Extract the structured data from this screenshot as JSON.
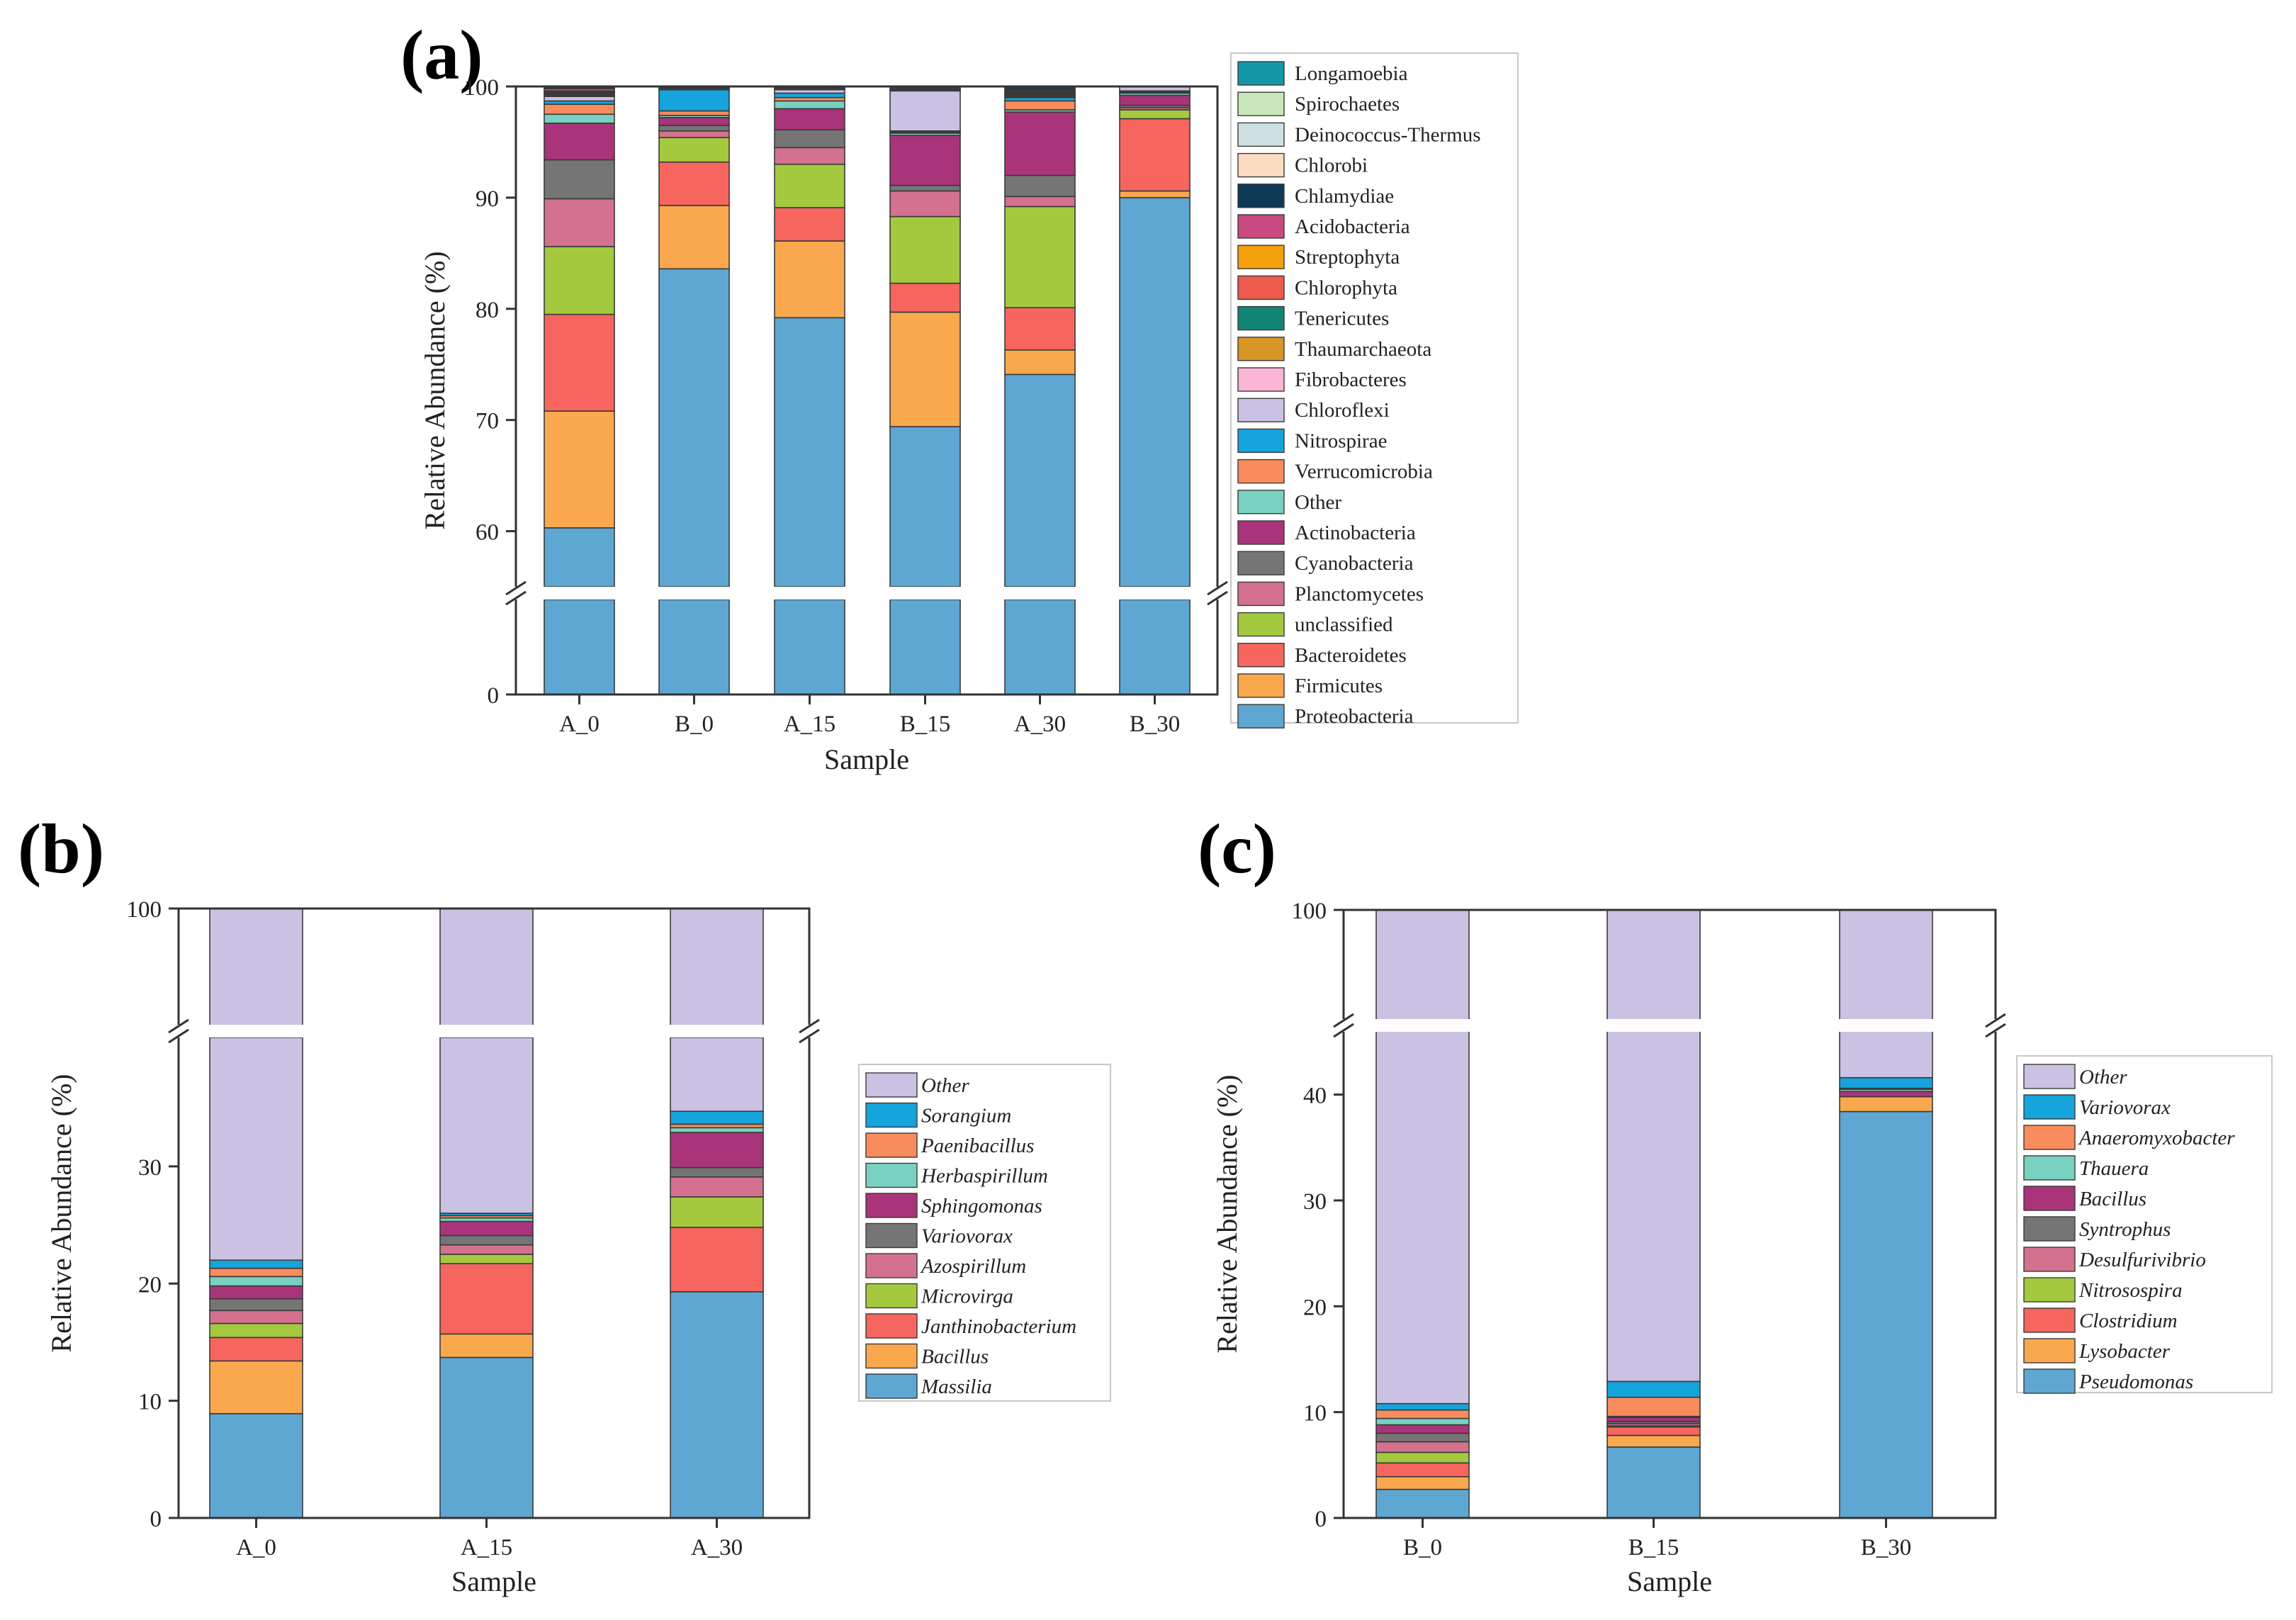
{
  "panels": {
    "a": {
      "label": "(a)"
    },
    "b": {
      "label": "(b)"
    },
    "c": {
      "label": "(c)"
    }
  },
  "chart_data": [
    {
      "id": "a",
      "type": "bar",
      "stacked": true,
      "broken_axis": true,
      "title": "",
      "xlabel": "Sample",
      "ylabel": "Relative Abundance (%)",
      "ylim_lower": [
        0,
        10
      ],
      "ylim_upper": [
        55,
        100
      ],
      "yticks": [
        0,
        60,
        70,
        80,
        90,
        100
      ],
      "categories": [
        "A_0",
        "B_0",
        "A_15",
        "B_15",
        "A_30",
        "B_30"
      ],
      "legend_italic": false,
      "series": [
        {
          "name": "Proteobacteria",
          "color": "#5ea7d3",
          "values": [
            60.3,
            83.6,
            79.2,
            69.4,
            74.1,
            90.0
          ]
        },
        {
          "name": "Firmicutes",
          "color": "#f9a84d",
          "values": [
            10.5,
            5.7,
            6.9,
            10.3,
            2.2,
            0.6
          ]
        },
        {
          "name": "Bacteroidetes",
          "color": "#f6665f",
          "values": [
            8.7,
            3.9,
            3.0,
            2.6,
            3.8,
            6.5
          ]
        },
        {
          "name": "unclassified",
          "color": "#a4c93f",
          "values": [
            6.1,
            2.2,
            3.9,
            6.0,
            9.1,
            0.8
          ]
        },
        {
          "name": "Planctomycetes",
          "color": "#d4718e",
          "values": [
            4.3,
            0.6,
            1.5,
            2.3,
            0.9,
            0.2
          ]
        },
        {
          "name": "Cyanobacteria",
          "color": "#757575",
          "values": [
            3.5,
            0.5,
            1.6,
            0.5,
            1.9,
            0.2
          ]
        },
        {
          "name": "Actinobacteria",
          "color": "#a93479",
          "values": [
            3.3,
            0.7,
            1.9,
            4.5,
            5.7,
            0.9
          ]
        },
        {
          "name": "Other",
          "color": "#79d1c1",
          "values": [
            0.8,
            0.2,
            0.7,
            0.2,
            0.2,
            0.2
          ]
        },
        {
          "name": "Verrucomicrobia",
          "color": "#f98c5c",
          "values": [
            0.9,
            0.4,
            0.3,
            0.1,
            0.8,
            0.1
          ]
        },
        {
          "name": "Nitrospirae",
          "color": "#15a4dc",
          "values": [
            0.3,
            1.9,
            0.4,
            0.1,
            0.3,
            0.1
          ]
        },
        {
          "name": "Chloroflexi",
          "color": "#cbc1e2",
          "values": [
            0.4,
            0.1,
            0.3,
            3.6,
            0.1,
            0.7
          ]
        },
        {
          "name": "Fibrobacteres",
          "color": "#fcb5d6",
          "values": [
            0.1,
            0.1,
            0.1,
            0.1,
            0.1,
            0.1
          ]
        },
        {
          "name": "Thaumarchaeota",
          "color": "#d89627",
          "values": [
            0.1,
            0.1,
            0.1,
            0.1,
            0.1,
            0.1
          ]
        },
        {
          "name": "Tenericutes",
          "color": "#128674",
          "values": [
            0.1,
            0.1,
            0.1,
            0.0,
            0.1,
            0.1
          ]
        },
        {
          "name": "Chlorophyta",
          "color": "#ed5b4c",
          "values": [
            0.1,
            0.1,
            0.1,
            0.1,
            0.1,
            0.1
          ]
        },
        {
          "name": "Streptophyta",
          "color": "#f4a10d",
          "values": [
            0.1,
            0.1,
            0.0,
            0.1,
            0.1,
            0.1
          ]
        },
        {
          "name": "Acidobacteria",
          "color": "#c94a81",
          "values": [
            0.2,
            0.1,
            0.0,
            0.1,
            0.1,
            0.0
          ]
        },
        {
          "name": "Chlamydiae",
          "color": "#0d3a55",
          "values": [
            0.1,
            0.1,
            0.0,
            0.1,
            0.2,
            0.1
          ]
        },
        {
          "name": "Chlorobi",
          "color": "#fbdcc0",
          "values": [
            0.0,
            0.1,
            0.0,
            0.0,
            0.1,
            0.1
          ]
        },
        {
          "name": "Deinococcus-Thermus",
          "color": "#cfe0e0",
          "values": [
            0.0,
            0.1,
            0.0,
            0.0,
            0.1,
            0.0
          ]
        },
        {
          "name": "Spirochaetes",
          "color": "#c9e7b8",
          "values": [
            0.0,
            0.0,
            0.0,
            0.0,
            0.0,
            0.0
          ]
        },
        {
          "name": "Longamoebia",
          "color": "#1498a7",
          "values": [
            0.0,
            0.0,
            0.0,
            0.0,
            0.0,
            0.0
          ]
        }
      ]
    },
    {
      "id": "b",
      "type": "bar",
      "stacked": true,
      "broken_axis": true,
      "title": "",
      "xlabel": "Sample",
      "ylabel": "Relative Abundance (%)",
      "ylim_lower": [
        0,
        41
      ],
      "ylim_upper": [
        95,
        100
      ],
      "yticks": [
        0,
        10,
        20,
        30,
        100
      ],
      "categories": [
        "A_0",
        "A_15",
        "A_30"
      ],
      "legend_italic": true,
      "series": [
        {
          "name": "Massilia",
          "color": "#5ea7d3",
          "values": [
            8.9,
            13.7,
            19.3
          ]
        },
        {
          "name": "Bacillus",
          "color": "#f9a84d",
          "values": [
            4.5,
            2.0,
            0.0
          ]
        },
        {
          "name": "Janthinobacterium",
          "color": "#f6665f",
          "values": [
            2.0,
            6.0,
            5.5
          ]
        },
        {
          "name": "Microvirga",
          "color": "#a4c93f",
          "values": [
            1.2,
            0.8,
            2.6
          ]
        },
        {
          "name": "Azospirillum",
          "color": "#d4718e",
          "values": [
            1.1,
            0.8,
            1.7
          ]
        },
        {
          "name": "Variovorax",
          "color": "#757575",
          "values": [
            1.0,
            0.8,
            0.8
          ]
        },
        {
          "name": "Sphingomonas",
          "color": "#a93479",
          "values": [
            1.1,
            1.2,
            3.0
          ]
        },
        {
          "name": "Herbaspirillum",
          "color": "#79d1c1",
          "values": [
            0.8,
            0.3,
            0.4
          ]
        },
        {
          "name": "Paenibacillus",
          "color": "#f98c5c",
          "values": [
            0.7,
            0.2,
            0.3
          ]
        },
        {
          "name": "Sorangium",
          "color": "#15a4dc",
          "values": [
            0.7,
            0.2,
            1.1
          ]
        },
        {
          "name": "Other",
          "color": "#cbc1e2",
          "values": [
            78.0,
            74.0,
            65.3
          ]
        }
      ]
    },
    {
      "id": "c",
      "type": "bar",
      "stacked": true,
      "broken_axis": true,
      "title": "",
      "xlabel": "Sample",
      "ylabel": "Relative Abundance (%)",
      "ylim_lower": [
        0,
        46
      ],
      "ylim_upper": [
        95,
        100
      ],
      "yticks": [
        0,
        10,
        20,
        30,
        40,
        100
      ],
      "categories": [
        "B_0",
        "B_15",
        "B_30"
      ],
      "legend_italic": true,
      "series": [
        {
          "name": "Pseudomonas",
          "color": "#5ea7d3",
          "values": [
            2.7,
            6.7,
            38.4
          ]
        },
        {
          "name": "Lysobacter",
          "color": "#f9a84d",
          "values": [
            1.2,
            1.1,
            1.4
          ]
        },
        {
          "name": "Clostridium",
          "color": "#f6665f",
          "values": [
            1.3,
            0.8,
            0.0
          ]
        },
        {
          "name": "Nitrosospira",
          "color": "#a4c93f",
          "values": [
            1.0,
            0.1,
            0.0
          ]
        },
        {
          "name": "Desulfurivibrio",
          "color": "#d4718e",
          "values": [
            1.0,
            0.2,
            0.0
          ]
        },
        {
          "name": "Syntrophus",
          "color": "#757575",
          "values": [
            0.8,
            0.2,
            0.0
          ]
        },
        {
          "name": "Bacillus",
          "color": "#a93479",
          "values": [
            0.8,
            0.4,
            0.5
          ]
        },
        {
          "name": "Thauera",
          "color": "#79d1c1",
          "values": [
            0.6,
            0.1,
            0.2
          ]
        },
        {
          "name": "Anaeromyxobacter",
          "color": "#f98c5c",
          "values": [
            0.8,
            1.8,
            0.1
          ]
        },
        {
          "name": "Variovorax",
          "color": "#15a4dc",
          "values": [
            0.6,
            1.5,
            1.0
          ]
        },
        {
          "name": "Other",
          "color": "#cbc1e2",
          "values": [
            89.2,
            87.1,
            58.4
          ]
        }
      ]
    }
  ]
}
